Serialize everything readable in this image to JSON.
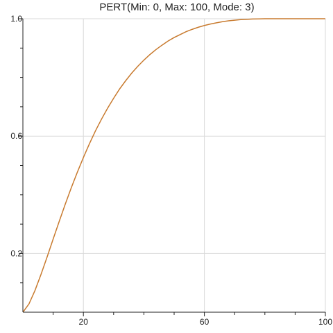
{
  "chart_data": {
    "type": "line",
    "title": "PERT(Min: 0, Max: 100, Mode: 3)",
    "xlabel": "",
    "ylabel": "",
    "xlim": [
      0,
      100
    ],
    "ylim": [
      0,
      1
    ],
    "x_ticks": [
      20,
      60,
      100
    ],
    "x_tick_labels": [
      "20",
      "60",
      "100"
    ],
    "y_ticks": [
      0.2,
      0.6,
      1.0
    ],
    "y_tick_labels": [
      "0.2",
      "0.6",
      "1.0"
    ],
    "x_minor_step": 10,
    "y_minor_step": 0.1,
    "grid": true,
    "series": [
      {
        "color": "#c87a2e",
        "x": [
          0,
          2,
          4,
          6,
          8,
          10,
          12,
          14,
          16,
          18,
          20,
          22,
          24,
          26,
          28,
          30,
          32,
          34,
          36,
          38,
          40,
          42,
          44,
          46,
          48,
          50,
          52,
          54,
          56,
          58,
          60,
          62,
          64,
          66,
          68,
          70,
          72,
          74,
          76,
          78,
          80,
          85,
          90,
          95,
          100
        ],
        "y": [
          0.0,
          0.028,
          0.074,
          0.129,
          0.188,
          0.249,
          0.309,
          0.368,
          0.424,
          0.477,
          0.527,
          0.574,
          0.618,
          0.658,
          0.695,
          0.729,
          0.761,
          0.789,
          0.815,
          0.838,
          0.859,
          0.878,
          0.895,
          0.91,
          0.924,
          0.936,
          0.946,
          0.956,
          0.964,
          0.971,
          0.977,
          0.982,
          0.986,
          0.99,
          0.993,
          0.995,
          0.997,
          0.998,
          0.999,
          0.9995,
          1.0,
          1.0,
          1.0,
          1.0,
          1.0
        ]
      }
    ]
  }
}
